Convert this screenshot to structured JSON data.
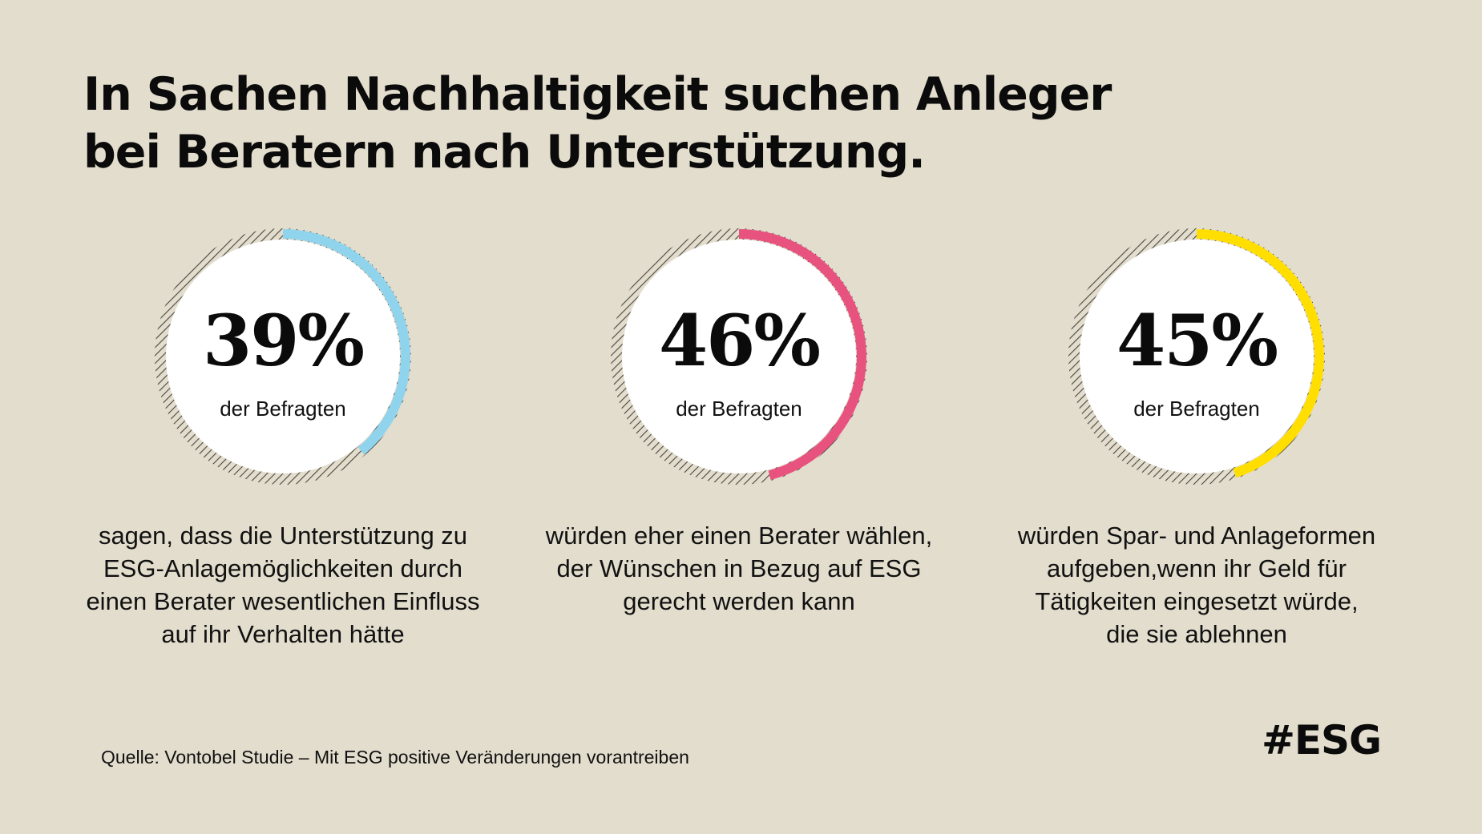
{
  "title": {
    "lines": [
      "In Sachen Nachhaltigkeit suchen Anleger",
      "bei Beratern nach Unterstützung."
    ]
  },
  "chart_data": {
    "type": "donut",
    "stats": [
      {
        "value": 39,
        "label": "39%",
        "sub": "der Befragten",
        "color": "#8fd3ec",
        "desc": [
          "sagen, dass die Unterstützung zu",
          "ESG-Anlagemöglichkeiten durch",
          "einen Berater wesentlichen Einfluss",
          "auf ihr Verhalten hätte"
        ]
      },
      {
        "value": 46,
        "label": "46%",
        "sub": "der Befragten",
        "color": "#e8527e",
        "desc": [
          "würden eher einen Berater wählen,",
          "der Wünschen in Bezug auf ESG",
          "gerecht werden kann"
        ]
      },
      {
        "value": 45,
        "label": "45%",
        "sub": "der Befragten",
        "color": "#ffde00",
        "desc": [
          "würden Spar- und Anlageformen",
          "aufgeben,wenn ihr Geld für",
          "Tätigkeiten eingesetzt würde,",
          "die sie ablehnen"
        ]
      }
    ]
  },
  "footer": {
    "source": "Quelle: Vontobel Studie – Mit ESG positive Veränderungen vorantreiben",
    "hashtag": "#ESG"
  }
}
